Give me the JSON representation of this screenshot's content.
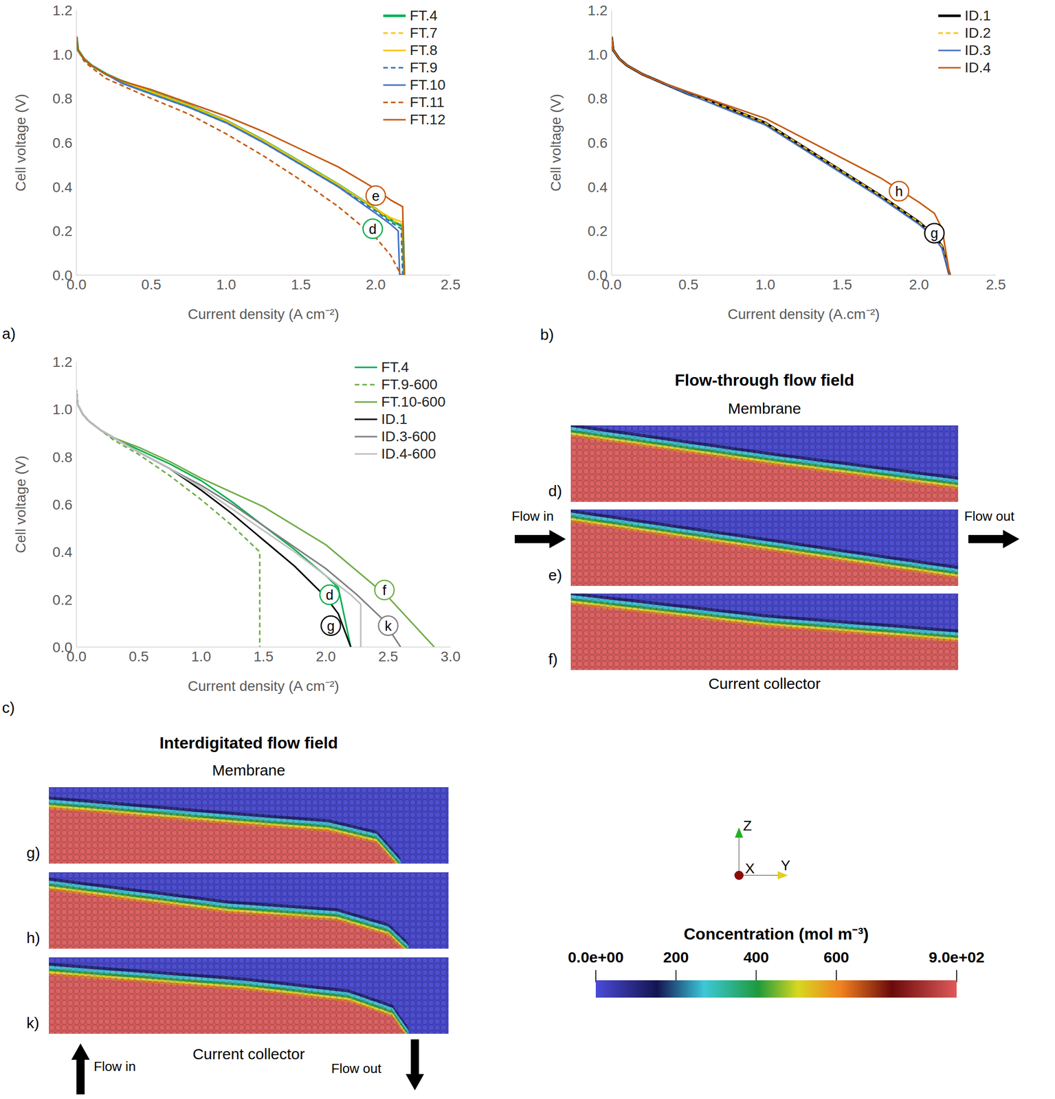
{
  "chart_data": [
    {
      "type": "line",
      "panel": "a)",
      "xlabel": "Current density (A cm⁻²)",
      "ylabel": "Cell voltage (V)",
      "xlim": [
        0,
        2.5
      ],
      "xticks": [
        {
          "value": 0,
          "label": "0.0"
        },
        0.5,
        {
          "value": 1,
          "label": "1.0"
        },
        1.5,
        {
          "value": 2,
          "label": "2.0"
        },
        2.5
      ],
      "ylim": [
        0,
        1.2
      ],
      "yticks": [
        {
          "value": 0,
          "label": "0.0"
        },
        0.2,
        0.4,
        0.6,
        0.8,
        {
          "value": 1,
          "label": "1.0"
        },
        1.2
      ],
      "legend": "top-right",
      "series": [
        {
          "name": "FT.4",
          "color": "#00b050",
          "line_style": "solid",
          "x": [
            0,
            0.01,
            0.05,
            0.1,
            0.2,
            0.3,
            0.5,
            0.75,
            1.0,
            1.25,
            1.5,
            1.75,
            2.0,
            2.1,
            2.18,
            2.19
          ],
          "values": [
            1.08,
            1.02,
            0.98,
            0.95,
            0.91,
            0.88,
            0.83,
            0.77,
            0.7,
            0.61,
            0.51,
            0.41,
            0.3,
            0.25,
            0.22,
            0.0
          ]
        },
        {
          "name": "FT.7",
          "color": "#ffc000",
          "line_style": "dashed",
          "x": [
            0,
            0.01,
            0.05,
            0.1,
            0.2,
            0.3,
            0.5,
            0.75,
            1.0,
            1.25,
            1.5,
            1.75,
            2.0,
            2.1,
            2.18,
            2.19
          ],
          "values": [
            1.08,
            1.02,
            0.98,
            0.95,
            0.91,
            0.88,
            0.83,
            0.77,
            0.7,
            0.61,
            0.51,
            0.41,
            0.3,
            0.25,
            0.23,
            0.0
          ]
        },
        {
          "name": "FT.8",
          "color": "#ffc000",
          "line_style": "solid",
          "x": [
            0,
            0.01,
            0.05,
            0.1,
            0.2,
            0.3,
            0.5,
            0.75,
            1.0,
            1.25,
            1.5,
            1.75,
            2.0,
            2.1,
            2.18,
            2.19
          ],
          "values": [
            1.08,
            1.02,
            0.98,
            0.95,
            0.91,
            0.88,
            0.83,
            0.77,
            0.7,
            0.61,
            0.51,
            0.41,
            0.3,
            0.26,
            0.24,
            0.0
          ]
        },
        {
          "name": "FT.9",
          "color": "#2e75b6",
          "line_style": "dashed",
          "x": [
            0,
            0.01,
            0.05,
            0.1,
            0.2,
            0.3,
            0.5,
            0.75,
            1.0,
            1.25,
            1.5,
            1.75,
            2.0,
            2.1,
            2.17,
            2.18
          ],
          "values": [
            1.08,
            1.02,
            0.98,
            0.95,
            0.91,
            0.87,
            0.82,
            0.76,
            0.69,
            0.6,
            0.5,
            0.4,
            0.29,
            0.24,
            0.21,
            0.0
          ]
        },
        {
          "name": "FT.10",
          "color": "#4472c4",
          "line_style": "solid",
          "x": [
            0,
            0.01,
            0.05,
            0.1,
            0.2,
            0.3,
            0.5,
            0.75,
            1.0,
            1.25,
            1.5,
            1.75,
            2.0,
            2.1,
            2.15,
            2.16
          ],
          "values": [
            1.08,
            1.02,
            0.98,
            0.95,
            0.91,
            0.87,
            0.82,
            0.76,
            0.69,
            0.6,
            0.5,
            0.4,
            0.28,
            0.23,
            0.2,
            0.0
          ]
        },
        {
          "name": "FT.11",
          "color": "#c55a11",
          "line_style": "dashed",
          "x": [
            0,
            0.01,
            0.05,
            0.1,
            0.2,
            0.3,
            0.5,
            0.75,
            1.0,
            1.25,
            1.5,
            1.75,
            2.0,
            2.1,
            2.17
          ],
          "values": [
            1.08,
            1.02,
            0.97,
            0.94,
            0.89,
            0.86,
            0.8,
            0.73,
            0.64,
            0.54,
            0.43,
            0.31,
            0.17,
            0.09,
            0.0
          ]
        },
        {
          "name": "FT.12",
          "color": "#c55a11",
          "line_style": "solid",
          "x": [
            0,
            0.01,
            0.05,
            0.1,
            0.2,
            0.3,
            0.5,
            0.75,
            1.0,
            1.25,
            1.5,
            1.75,
            2.0,
            2.1,
            2.18,
            2.19
          ],
          "values": [
            1.08,
            1.02,
            0.98,
            0.95,
            0.91,
            0.88,
            0.84,
            0.78,
            0.72,
            0.65,
            0.57,
            0.49,
            0.39,
            0.34,
            0.31,
            0.0
          ]
        }
      ],
      "annotations": [
        {
          "text": "e",
          "x": 2.0,
          "y": 0.36,
          "color": "#c55a11"
        },
        {
          "text": "d",
          "x": 1.98,
          "y": 0.21,
          "color": "#00b050"
        }
      ]
    },
    {
      "type": "line",
      "panel": "b)",
      "xlabel": "Current density (A.cm⁻²)",
      "ylabel": "Cell voltage (V)",
      "xlim": [
        0,
        2.5
      ],
      "xticks": [
        {
          "value": 0,
          "label": "0.0"
        },
        0.5,
        {
          "value": 1,
          "label": "1.0"
        },
        1.5,
        {
          "value": 2,
          "label": "2.0"
        },
        2.5
      ],
      "ylim": [
        0,
        1.2
      ],
      "yticks": [
        {
          "value": 0,
          "label": "0.0"
        },
        0.2,
        0.4,
        0.6,
        0.8,
        {
          "value": 1,
          "label": "1.0"
        },
        1.2
      ],
      "legend": "top-right",
      "series": [
        {
          "name": "ID.1",
          "color": "#000000",
          "line_style": "solid",
          "x": [
            0,
            0.01,
            0.05,
            0.1,
            0.2,
            0.3,
            0.5,
            0.75,
            1.0,
            1.25,
            1.5,
            1.75,
            2.0,
            2.1,
            2.15,
            2.2
          ],
          "values": [
            1.08,
            1.02,
            0.98,
            0.95,
            0.91,
            0.88,
            0.82,
            0.76,
            0.69,
            0.58,
            0.47,
            0.36,
            0.24,
            0.18,
            0.13,
            0.0
          ]
        },
        {
          "name": "ID.2",
          "color": "#ffc000",
          "line_style": "dashed",
          "x": [
            0,
            0.01,
            0.05,
            0.1,
            0.2,
            0.3,
            0.5,
            0.75,
            1.0,
            1.25,
            1.5,
            1.75,
            2.0,
            2.1,
            2.15,
            2.2
          ],
          "values": [
            1.08,
            1.02,
            0.98,
            0.95,
            0.91,
            0.88,
            0.82,
            0.76,
            0.69,
            0.58,
            0.47,
            0.36,
            0.24,
            0.18,
            0.13,
            0.0
          ]
        },
        {
          "name": "ID.3",
          "color": "#4472c4",
          "line_style": "solid",
          "x": [
            0,
            0.01,
            0.05,
            0.1,
            0.2,
            0.3,
            0.5,
            0.75,
            1.0,
            1.25,
            1.5,
            1.75,
            2.0,
            2.1,
            2.15,
            2.2
          ],
          "values": [
            1.08,
            1.02,
            0.98,
            0.95,
            0.91,
            0.88,
            0.82,
            0.75,
            0.68,
            0.57,
            0.46,
            0.35,
            0.23,
            0.17,
            0.12,
            0.0
          ]
        },
        {
          "name": "ID.4",
          "color": "#c55a11",
          "line_style": "solid",
          "x": [
            0,
            0.01,
            0.05,
            0.1,
            0.2,
            0.3,
            0.5,
            0.75,
            1.0,
            1.25,
            1.5,
            1.75,
            2.0,
            2.1,
            2.15,
            2.2
          ],
          "values": [
            1.08,
            1.02,
            0.98,
            0.95,
            0.91,
            0.88,
            0.83,
            0.77,
            0.71,
            0.62,
            0.53,
            0.44,
            0.33,
            0.28,
            0.21,
            0.0
          ]
        }
      ],
      "annotations": [
        {
          "text": "h",
          "x": 1.87,
          "y": 0.38,
          "color": "#c55a11"
        },
        {
          "text": "g",
          "x": 2.1,
          "y": 0.19,
          "color": "#000000"
        }
      ]
    },
    {
      "type": "line",
      "panel": "c)",
      "xlabel": "Current density (A cm⁻²)",
      "ylabel": "Cell voltage (V)",
      "xlim": [
        0,
        3
      ],
      "xticks": [
        {
          "value": 0,
          "label": "0.0"
        },
        0.5,
        {
          "value": 1,
          "label": "1.0"
        },
        1.5,
        {
          "value": 2,
          "label": "2.0"
        },
        2.5,
        {
          "value": 3,
          "label": "3.0"
        }
      ],
      "ylim": [
        0,
        1.2
      ],
      "yticks": [
        {
          "value": 0,
          "label": "0.0"
        },
        0.2,
        0.4,
        0.6,
        0.8,
        {
          "value": 1,
          "label": "1.0"
        },
        1.2
      ],
      "legend": "top-right",
      "series": [
        {
          "name": "FT.4",
          "color": "#00b050",
          "line_style": "solid",
          "x": [
            0,
            0.01,
            0.05,
            0.1,
            0.2,
            0.3,
            0.5,
            0.75,
            1.0,
            1.25,
            1.5,
            1.75,
            2.0,
            2.1,
            2.2
          ],
          "values": [
            1.08,
            1.02,
            0.98,
            0.95,
            0.91,
            0.88,
            0.83,
            0.77,
            0.7,
            0.61,
            0.51,
            0.41,
            0.3,
            0.25,
            0.0
          ]
        },
        {
          "name": "FT.9-600",
          "color": "#70ad47",
          "line_style": "dashed",
          "x": [
            0,
            0.01,
            0.05,
            0.1,
            0.2,
            0.3,
            0.5,
            0.75,
            1.0,
            1.25,
            1.47,
            1.47
          ],
          "values": [
            1.08,
            1.02,
            0.98,
            0.95,
            0.91,
            0.87,
            0.81,
            0.72,
            0.62,
            0.51,
            0.4,
            0.0
          ]
        },
        {
          "name": "FT.10-600",
          "color": "#70ad47",
          "line_style": "solid",
          "x": [
            0,
            0.01,
            0.05,
            0.1,
            0.2,
            0.3,
            0.5,
            0.75,
            1.0,
            1.5,
            2.0,
            2.5,
            2.87
          ],
          "values": [
            1.08,
            1.02,
            0.98,
            0.95,
            0.91,
            0.88,
            0.84,
            0.78,
            0.71,
            0.59,
            0.43,
            0.21,
            0.0
          ]
        },
        {
          "name": "ID.1",
          "color": "#000000",
          "line_style": "solid",
          "x": [
            0,
            0.01,
            0.05,
            0.1,
            0.2,
            0.3,
            0.5,
            0.75,
            1.0,
            1.25,
            1.5,
            1.75,
            2.0,
            2.1,
            2.2
          ],
          "values": [
            1.08,
            1.02,
            0.98,
            0.95,
            0.91,
            0.88,
            0.82,
            0.75,
            0.66,
            0.56,
            0.45,
            0.34,
            0.21,
            0.14,
            0.0
          ]
        },
        {
          "name": "ID.3-600",
          "color": "#7f7f7f",
          "line_style": "solid",
          "x": [
            0,
            0.01,
            0.05,
            0.1,
            0.2,
            0.3,
            0.5,
            0.75,
            1.0,
            1.25,
            1.5,
            1.75,
            2.0,
            2.25,
            2.45,
            2.6
          ],
          "values": [
            1.08,
            1.02,
            0.98,
            0.95,
            0.91,
            0.88,
            0.82,
            0.75,
            0.68,
            0.6,
            0.51,
            0.42,
            0.33,
            0.22,
            0.12,
            0.0
          ]
        },
        {
          "name": "ID.4-600",
          "color": "#bfbfbf",
          "line_style": "solid",
          "x": [
            0,
            0.01,
            0.05,
            0.1,
            0.2,
            0.3,
            0.5,
            0.75,
            1.0,
            1.25,
            1.5,
            1.75,
            2.0,
            2.2,
            2.28,
            2.28
          ],
          "values": [
            1.08,
            1.02,
            0.98,
            0.95,
            0.91,
            0.88,
            0.82,
            0.75,
            0.67,
            0.58,
            0.49,
            0.4,
            0.3,
            0.22,
            0.18,
            0.0
          ]
        }
      ],
      "annotations": [
        {
          "text": "d",
          "x": 2.03,
          "y": 0.22,
          "color": "#00b050"
        },
        {
          "text": "f",
          "x": 2.47,
          "y": 0.24,
          "color": "#70ad47"
        },
        {
          "text": "g",
          "x": 2.04,
          "y": 0.09,
          "color": "#000000"
        },
        {
          "text": "k",
          "x": 2.5,
          "y": 0.09,
          "color": "#7f7f7f"
        }
      ]
    }
  ],
  "flow_through": {
    "title": "Flow-through flow field",
    "top": "Membrane",
    "bottom": "Current collector",
    "inlet": "Flow in",
    "outlet": "Flow out",
    "panels": [
      "d)",
      "e)",
      "f)"
    ]
  },
  "interdigitated": {
    "title": "Interdigitated flow field",
    "top": "Membrane",
    "bottom": "Current collector",
    "inlet": "Flow in",
    "outlet": "Flow out",
    "panels": [
      "g)",
      "h)",
      "k)"
    ]
  },
  "axes_triad": {
    "labels": [
      "Z",
      "X",
      "Y"
    ]
  },
  "colorbar": {
    "title": "Concentration (mol m⁻³)",
    "range": [
      0,
      900
    ],
    "ticks": [
      {
        "value": 0,
        "label": "0.0e+00"
      },
      200,
      400,
      600,
      {
        "value": 900,
        "label": "9.0e+02"
      }
    ]
  }
}
